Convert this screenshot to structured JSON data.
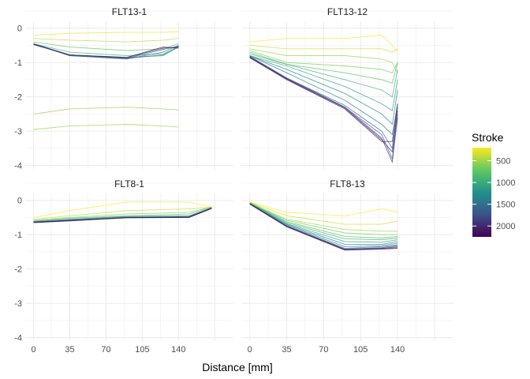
{
  "chart_data": {
    "type": "line",
    "title": "",
    "xlabel": "Distance [mm]",
    "ylabel": "",
    "xlim": [
      -5,
      190
    ],
    "ylim": [
      -4.1,
      0.2
    ],
    "x_ticks": [
      0,
      35,
      70,
      105,
      140
    ],
    "y_ticks": [
      0,
      -1,
      -2,
      -3,
      -4
    ],
    "grid": true,
    "legend": {
      "title": "Stroke",
      "position": "right",
      "type": "colorbar",
      "range": [
        200,
        2250
      ],
      "ticks": [
        500,
        1000,
        1500,
        2000
      ],
      "colormap": "viridis-reversed"
    },
    "facets": [
      {
        "title": "FLT13-1",
        "x": [
          0,
          35,
          90,
          125,
          140
        ],
        "series": [
          {
            "stroke": 250,
            "values": [
              -0.2,
              -0.15,
              -0.12,
              -0.12,
              -0.1
            ]
          },
          {
            "stroke": 400,
            "values": [
              -0.3,
              -0.35,
              -0.4,
              -0.35,
              -0.3
            ]
          },
          {
            "stroke": 500,
            "values": [
              -2.95,
              -2.85,
              -2.8,
              -2.85,
              -2.88
            ]
          },
          {
            "stroke": 550,
            "values": [
              -2.5,
              -2.35,
              -2.3,
              -2.35,
              -2.38
            ]
          },
          {
            "stroke": 700,
            "values": [
              -0.4,
              -0.55,
              -0.65,
              -0.6,
              -0.45
            ]
          },
          {
            "stroke": 900,
            "values": [
              -0.45,
              -0.7,
              -0.8,
              -0.75,
              -0.55
            ]
          },
          {
            "stroke": 1100,
            "values": [
              -0.45,
              -0.78,
              -0.85,
              -0.8,
              -0.55
            ]
          },
          {
            "stroke": 1300,
            "values": [
              -0.45,
              -0.8,
              -0.88,
              -0.78,
              -0.52
            ]
          },
          {
            "stroke": 1500,
            "values": [
              -0.46,
              -0.8,
              -0.9,
              -0.7,
              -0.5
            ]
          },
          {
            "stroke": 1700,
            "values": [
              -0.46,
              -0.78,
              -0.88,
              -0.62,
              -0.52
            ]
          },
          {
            "stroke": 1900,
            "values": [
              -0.47,
              -0.78,
              -0.86,
              -0.58,
              -0.55
            ]
          },
          {
            "stroke": 2100,
            "values": [
              -0.48,
              -0.78,
              -0.85,
              -0.55,
              -0.58
            ]
          }
        ]
      },
      {
        "title": "FLT13-12",
        "x": [
          0,
          35,
          90,
          125,
          135,
          140
        ],
        "series": [
          {
            "stroke": 200,
            "values": [
              -0.4,
              -0.3,
              -0.3,
              -0.2,
              -0.5,
              -0.7
            ]
          },
          {
            "stroke": 350,
            "values": [
              -0.5,
              -0.6,
              -0.6,
              -0.6,
              -0.7,
              -0.6
            ]
          },
          {
            "stroke": 500,
            "values": [
              -0.6,
              -0.8,
              -0.8,
              -0.9,
              -1.0,
              -1.3
            ]
          },
          {
            "stroke": 650,
            "values": [
              -0.65,
              -1.0,
              -1.1,
              -1.2,
              -1.3,
              -1.0
            ]
          },
          {
            "stroke": 800,
            "values": [
              -0.7,
              -1.05,
              -1.3,
              -1.5,
              -1.6,
              -1.0
            ]
          },
          {
            "stroke": 950,
            "values": [
              -0.75,
              -1.05,
              -1.5,
              -1.8,
              -2.0,
              -1.2
            ]
          },
          {
            "stroke": 1100,
            "values": [
              -0.8,
              -1.1,
              -1.7,
              -2.2,
              -2.4,
              -1.5
            ]
          },
          {
            "stroke": 1250,
            "values": [
              -0.8,
              -1.2,
              -1.9,
              -2.5,
              -2.8,
              -1.8
            ]
          },
          {
            "stroke": 1400,
            "values": [
              -0.8,
              -1.3,
              -2.1,
              -2.8,
              -3.1,
              -2.2
            ]
          },
          {
            "stroke": 1550,
            "values": [
              -0.82,
              -1.45,
              -2.25,
              -3.0,
              -3.5,
              -2.3
            ]
          },
          {
            "stroke": 1700,
            "values": [
              -0.82,
              -1.45,
              -2.3,
              -3.1,
              -3.8,
              -2.5
            ]
          },
          {
            "stroke": 1850,
            "values": [
              -0.84,
              -1.47,
              -2.3,
              -3.2,
              -3.9,
              -2.6
            ]
          },
          {
            "stroke": 2000,
            "values": [
              -0.85,
              -1.48,
              -2.32,
              -3.25,
              -3.6,
              -2.4
            ]
          },
          {
            "stroke": 2150,
            "values": [
              -0.86,
              -1.5,
              -2.35,
              -3.3,
              -3.3,
              -2.2
            ]
          }
        ]
      },
      {
        "title": "FLT8-1",
        "x": [
          0,
          35,
          90,
          150,
          172
        ],
        "series": [
          {
            "stroke": 200,
            "values": [
              -0.5,
              -0.3,
              -0.05,
              -0.05,
              -0.2
            ]
          },
          {
            "stroke": 400,
            "values": [
              -0.55,
              -0.45,
              -0.3,
              -0.25,
              -0.2
            ]
          },
          {
            "stroke": 600,
            "values": [
              -0.58,
              -0.5,
              -0.4,
              -0.35,
              -0.2
            ]
          },
          {
            "stroke": 800,
            "values": [
              -0.6,
              -0.52,
              -0.45,
              -0.4,
              -0.2
            ]
          },
          {
            "stroke": 1000,
            "values": [
              -0.62,
              -0.55,
              -0.47,
              -0.45,
              -0.22
            ]
          },
          {
            "stroke": 1200,
            "values": [
              -0.62,
              -0.56,
              -0.48,
              -0.46,
              -0.22
            ]
          },
          {
            "stroke": 1400,
            "values": [
              -0.63,
              -0.58,
              -0.5,
              -0.48,
              -0.22
            ]
          },
          {
            "stroke": 1600,
            "values": [
              -0.63,
              -0.58,
              -0.5,
              -0.48,
              -0.23
            ]
          },
          {
            "stroke": 1800,
            "values": [
              -0.64,
              -0.58,
              -0.5,
              -0.49,
              -0.23
            ]
          },
          {
            "stroke": 2000,
            "values": [
              -0.64,
              -0.59,
              -0.5,
              -0.5,
              -0.23
            ]
          },
          {
            "stroke": 2200,
            "values": [
              -0.65,
              -0.6,
              -0.51,
              -0.5,
              -0.24
            ]
          }
        ]
      },
      {
        "title": "FLT8-13",
        "x": [
          0,
          35,
          90,
          125,
          140
        ],
        "series": [
          {
            "stroke": 200,
            "values": [
              -0.05,
              -0.35,
              -0.45,
              -0.25,
              -0.35
            ]
          },
          {
            "stroke": 350,
            "values": [
              -0.06,
              -0.45,
              -0.7,
              -0.7,
              -0.6
            ]
          },
          {
            "stroke": 500,
            "values": [
              -0.07,
              -0.55,
              -0.85,
              -0.9,
              -0.9
            ]
          },
          {
            "stroke": 650,
            "values": [
              -0.08,
              -0.58,
              -0.95,
              -1.0,
              -1.0
            ]
          },
          {
            "stroke": 800,
            "values": [
              -0.08,
              -0.62,
              -1.05,
              -1.1,
              -1.05
            ]
          },
          {
            "stroke": 950,
            "values": [
              -0.08,
              -0.65,
              -1.12,
              -1.15,
              -1.1
            ]
          },
          {
            "stroke": 1100,
            "values": [
              -0.09,
              -0.68,
              -1.2,
              -1.22,
              -1.15
            ]
          },
          {
            "stroke": 1250,
            "values": [
              -0.09,
              -0.7,
              -1.28,
              -1.28,
              -1.2
            ]
          },
          {
            "stroke": 1400,
            "values": [
              -0.1,
              -0.72,
              -1.35,
              -1.32,
              -1.25
            ]
          },
          {
            "stroke": 1550,
            "values": [
              -0.1,
              -0.74,
              -1.4,
              -1.35,
              -1.3
            ]
          },
          {
            "stroke": 1700,
            "values": [
              -0.1,
              -0.75,
              -1.42,
              -1.38,
              -1.32
            ]
          },
          {
            "stroke": 1850,
            "values": [
              -0.1,
              -0.76,
              -1.43,
              -1.4,
              -1.35
            ]
          },
          {
            "stroke": 2000,
            "values": [
              -0.11,
              -0.76,
              -1.44,
              -1.4,
              -1.38
            ]
          },
          {
            "stroke": 2150,
            "values": [
              -0.11,
              -0.77,
              -1.45,
              -1.42,
              -1.4
            ]
          }
        ]
      }
    ]
  }
}
